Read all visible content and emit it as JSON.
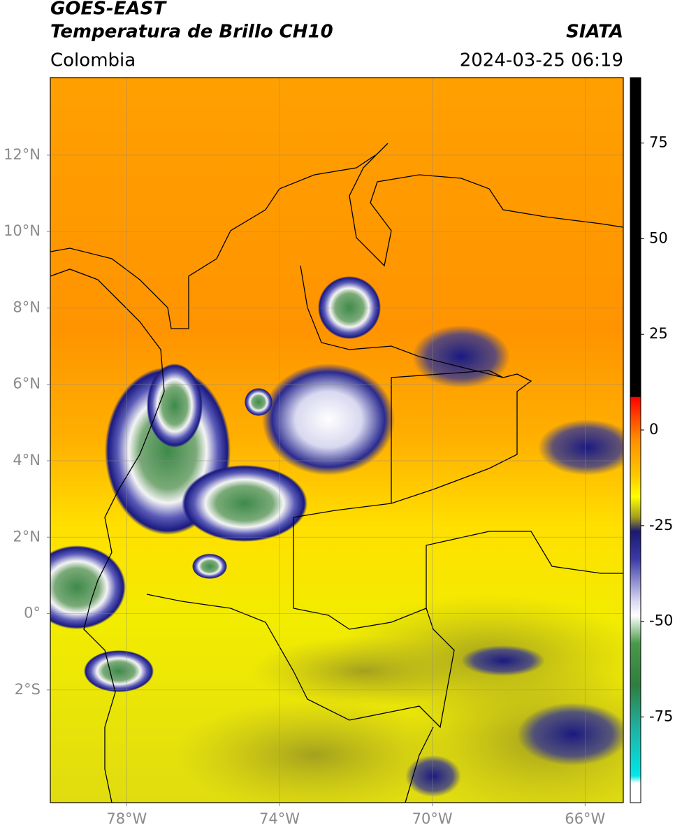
{
  "map": {
    "title": "GOES-EAST",
    "subtitle": "Temperatura de Brillo CH10",
    "source": "SIATA",
    "region": "Colombia",
    "datetime": "2024-03-25 06:19",
    "latlim": [
      -4.95,
      14.03
    ],
    "lonlim": [
      -80,
      -65
    ],
    "lat_ticks": [
      {
        "value": 12,
        "label": "12°N"
      },
      {
        "value": 10,
        "label": "10°N"
      },
      {
        "value": 8,
        "label": "8°N"
      },
      {
        "value": 6,
        "label": "6°N"
      },
      {
        "value": 4,
        "label": "4°N"
      },
      {
        "value": 2,
        "label": "2°N"
      },
      {
        "value": 0,
        "label": "0°"
      },
      {
        "value": -2,
        "label": "2°S"
      }
    ],
    "lon_ticks": [
      {
        "value": -78,
        "label": "78°W"
      },
      {
        "value": -74,
        "label": "74°W"
      },
      {
        "value": -70,
        "label": "70°W"
      },
      {
        "value": -66,
        "label": "66°W"
      }
    ],
    "grid": true,
    "colorbar": {
      "lim": [
        -97.4,
        92.1
      ],
      "ticks": [
        75,
        50,
        25,
        0,
        -25,
        -50,
        -75
      ]
    }
  }
}
